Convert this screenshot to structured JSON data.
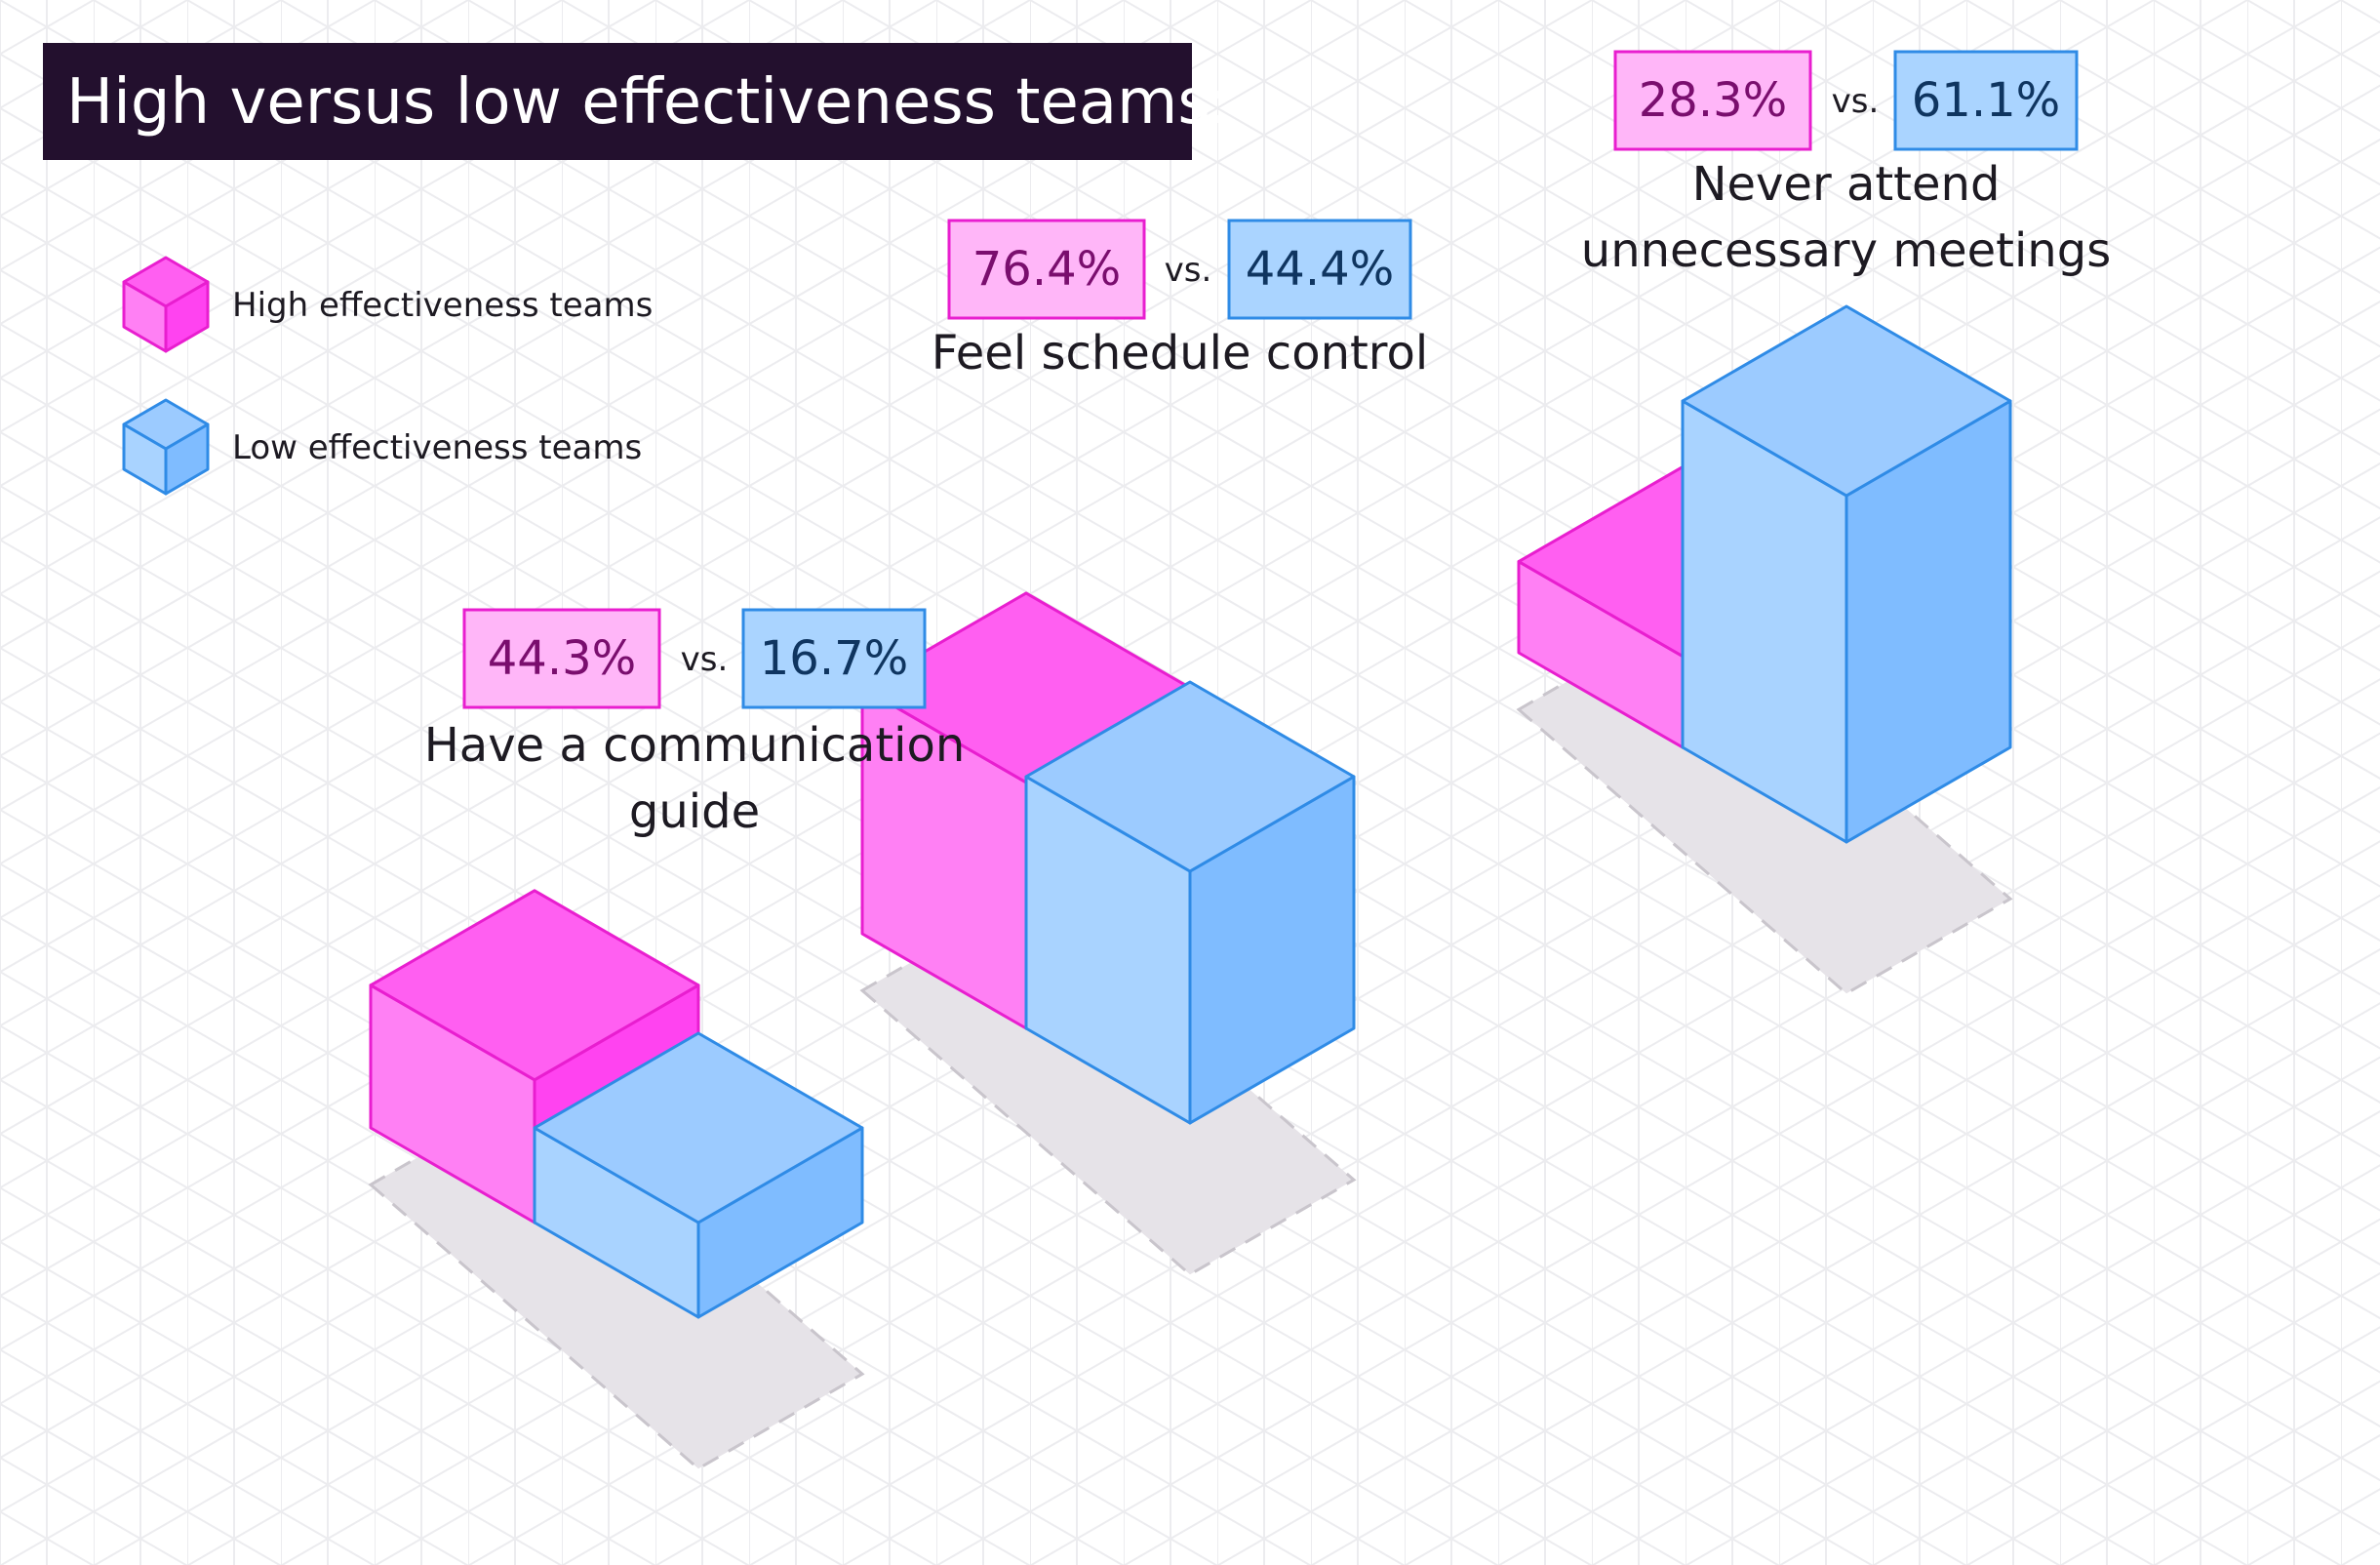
{
  "title": "High versus low effectiveness teams:",
  "legend": {
    "high": "High effectiveness teams",
    "low": "Low effectiveness teams"
  },
  "colors": {
    "title_bg": "#23102e",
    "pink_front": "#ff80f4",
    "pink_side": "#ff43f0",
    "pink_top": "#ff5ff1",
    "pink_stroke": "#e81ecf",
    "pink_label_bg": "#ffb6f8",
    "pink_label_text": "#7a0e6e",
    "blue_front": "#a9d3ff",
    "blue_side": "#7fbcff",
    "blue_top": "#9ccbff",
    "blue_stroke": "#2f8be6",
    "blue_label_bg": "#aad4ff",
    "blue_label_text": "#0f3560",
    "shadow": "#e6e3e8",
    "grid": "#ececef",
    "text": "#1d1a22"
  },
  "vs_text": "vs.",
  "chart_data": {
    "type": "bar",
    "title": "High versus low effectiveness teams:",
    "xlabel": "",
    "ylabel": "",
    "categories": [
      "Have a communication guide",
      "Feel schedule control",
      "Never attend unnecessary meetings"
    ],
    "series": [
      {
        "name": "High effectiveness teams",
        "values": [
          44.3,
          76.4,
          28.3
        ]
      },
      {
        "name": "Low effectiveness teams",
        "values": [
          16.7,
          44.4,
          61.1
        ]
      }
    ],
    "value_labels": [
      {
        "category_lines": [
          "Have a communication",
          "guide"
        ],
        "high": "44.3%",
        "low": "16.7%"
      },
      {
        "category_lines": [
          "Feel schedule control"
        ],
        "high": "76.4%",
        "low": "44.4%"
      },
      {
        "category_lines": [
          "Never attend",
          "unnecessary meetings"
        ],
        "high": "28.3%",
        "low": "61.1%"
      }
    ],
    "units": "%",
    "ylim": [
      0,
      100
    ]
  }
}
